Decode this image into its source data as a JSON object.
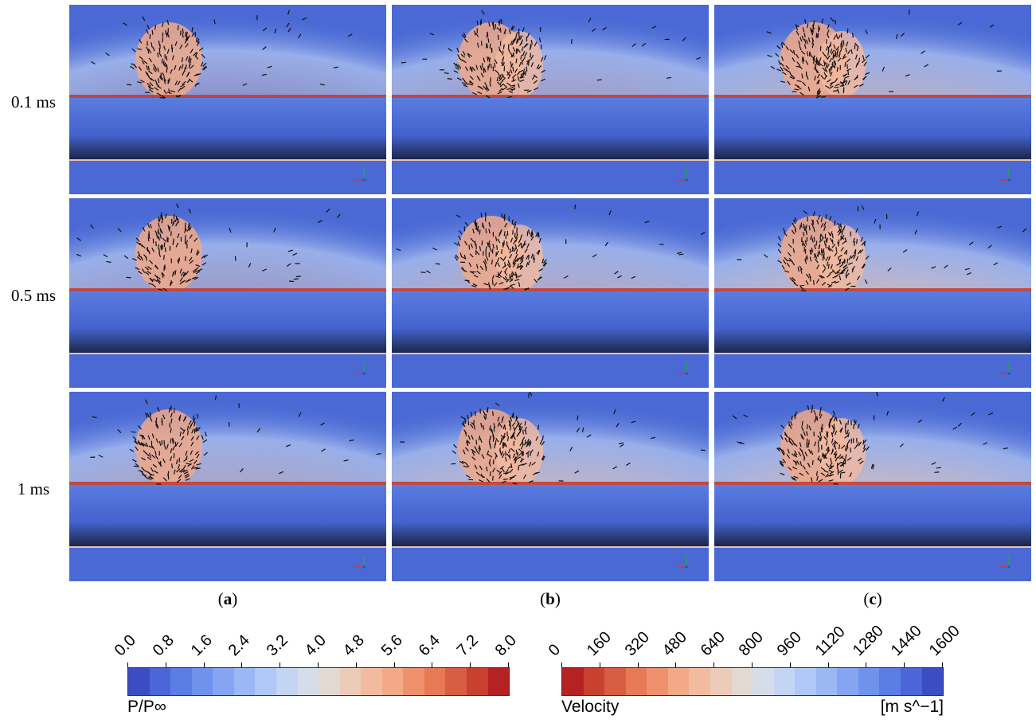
{
  "rows": [
    {
      "label": "0.1 ms"
    },
    {
      "label": "0.5 ms"
    },
    {
      "label": "1 ms"
    }
  ],
  "columns": [
    {
      "letter": "a"
    },
    {
      "letter": "b"
    },
    {
      "letter": "c"
    }
  ],
  "colorbars": [
    {
      "title": "P/P∞",
      "unit": "",
      "ticks": [
        "0.0",
        "0.8",
        "1.6",
        "2.4",
        "3.2",
        "4.0",
        "4.8",
        "5.6",
        "6.4",
        "7.2",
        "8.0"
      ],
      "colors": [
        "#3c4dc4",
        "#4b66d6",
        "#5b7ee4",
        "#6f92ec",
        "#85a5f2",
        "#9bb8f5",
        "#b0c8f6",
        "#c4d4f3",
        "#d5dcea",
        "#e2d9d2",
        "#ecccb9",
        "#f2bba0",
        "#f3a886",
        "#f0916d",
        "#e77956",
        "#d95d43",
        "#c8412f",
        "#b52224"
      ]
    },
    {
      "title": "Velocity",
      "unit": "[m s^−1]",
      "ticks": [
        "0",
        "160",
        "320",
        "480",
        "640",
        "800",
        "960",
        "1120",
        "1280",
        "1440",
        "1600"
      ],
      "colors": [
        "#b52224",
        "#c8412f",
        "#d95d43",
        "#e77956",
        "#f0916d",
        "#f3a886",
        "#f2bba0",
        "#ecccb9",
        "#e2d9d2",
        "#d5dcea",
        "#c4d4f3",
        "#b0c8f6",
        "#9bb8f5",
        "#85a5f2",
        "#6f92ec",
        "#5b7ee4",
        "#4b66d6",
        "#3c4dc4"
      ]
    }
  ]
}
